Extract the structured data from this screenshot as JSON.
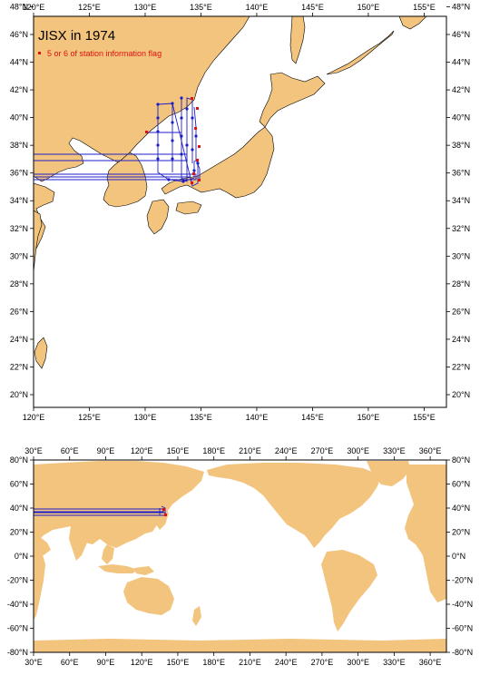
{
  "colors": {
    "land": "#F2C47E",
    "ocean": "#FFFFFF",
    "track": "#1E1EC8",
    "flag": "#E01010",
    "frame": "#000000"
  },
  "top_map": {
    "title": "JISX in 1974",
    "legend_label": "5 or 6 of station information flag",
    "lon_labels": [
      "120°E",
      "125°E",
      "130°E",
      "135°E",
      "140°E",
      "145°E",
      "150°E",
      "155°E"
    ],
    "lat_labels": [
      "20°N",
      "22°N",
      "24°N",
      "26°N",
      "28°N",
      "30°N",
      "32°N",
      "34°N",
      "36°N",
      "38°N",
      "40°N",
      "42°N",
      "44°N",
      "46°N",
      "48°N"
    ]
  },
  "bottom_map": {
    "lon_labels": [
      "30°E",
      "60°E",
      "90°E",
      "120°E",
      "150°E",
      "180°E",
      "210°E",
      "240°E",
      "270°E",
      "300°E",
      "330°E",
      "360°E"
    ],
    "lat_labels": [
      "80°N",
      "60°N",
      "40°N",
      "20°N",
      "0°N",
      "-20°N",
      "-40°N",
      "-60°N",
      "-80°N"
    ]
  }
}
